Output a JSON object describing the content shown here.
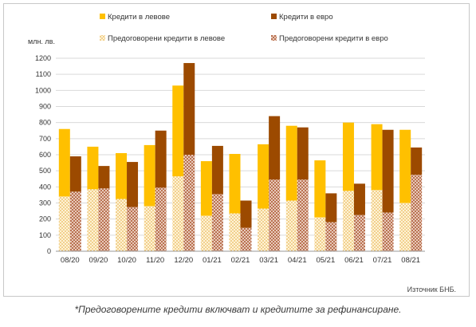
{
  "chart_data": {
    "type": "bar",
    "ylabel": "млн. лв.",
    "ylim": [
      0,
      1200
    ],
    "yticks": [
      0,
      100,
      200,
      300,
      400,
      500,
      600,
      700,
      800,
      900,
      1000,
      1100,
      1200
    ],
    "grid": true,
    "legend_position": "top",
    "categories": [
      "08/20",
      "09/20",
      "10/20",
      "11/20",
      "12/20",
      "01/21",
      "02/21",
      "03/21",
      "04/21",
      "05/21",
      "06/21",
      "07/21",
      "08/21"
    ],
    "series": [
      {
        "name": "Кредити в левове",
        "color": "#FFC000",
        "values": [
          760,
          650,
          610,
          660,
          1030,
          560,
          605,
          665,
          780,
          565,
          800,
          790,
          755
        ]
      },
      {
        "name": "Кредити в евро",
        "color": "#9C4A00",
        "values": [
          590,
          530,
          555,
          750,
          1170,
          655,
          315,
          840,
          770,
          360,
          420,
          755,
          645
        ]
      },
      {
        "name": "Предоговорени кредити в левове",
        "color": "#F5D48A",
        "pattern": "dots",
        "values": [
          340,
          385,
          325,
          280,
          465,
          220,
          235,
          265,
          315,
          210,
          375,
          380,
          300
        ]
      },
      {
        "name": "Предоговорени кредити в евро",
        "color": "#C8866A",
        "pattern": "crosshatch",
        "values": [
          370,
          390,
          275,
          395,
          600,
          355,
          145,
          445,
          445,
          180,
          225,
          240,
          475
        ]
      }
    ]
  },
  "source_note": "Източник БНБ.",
  "footnote": "*Предоговорените кредити включват и кредитите за рефинансиране."
}
